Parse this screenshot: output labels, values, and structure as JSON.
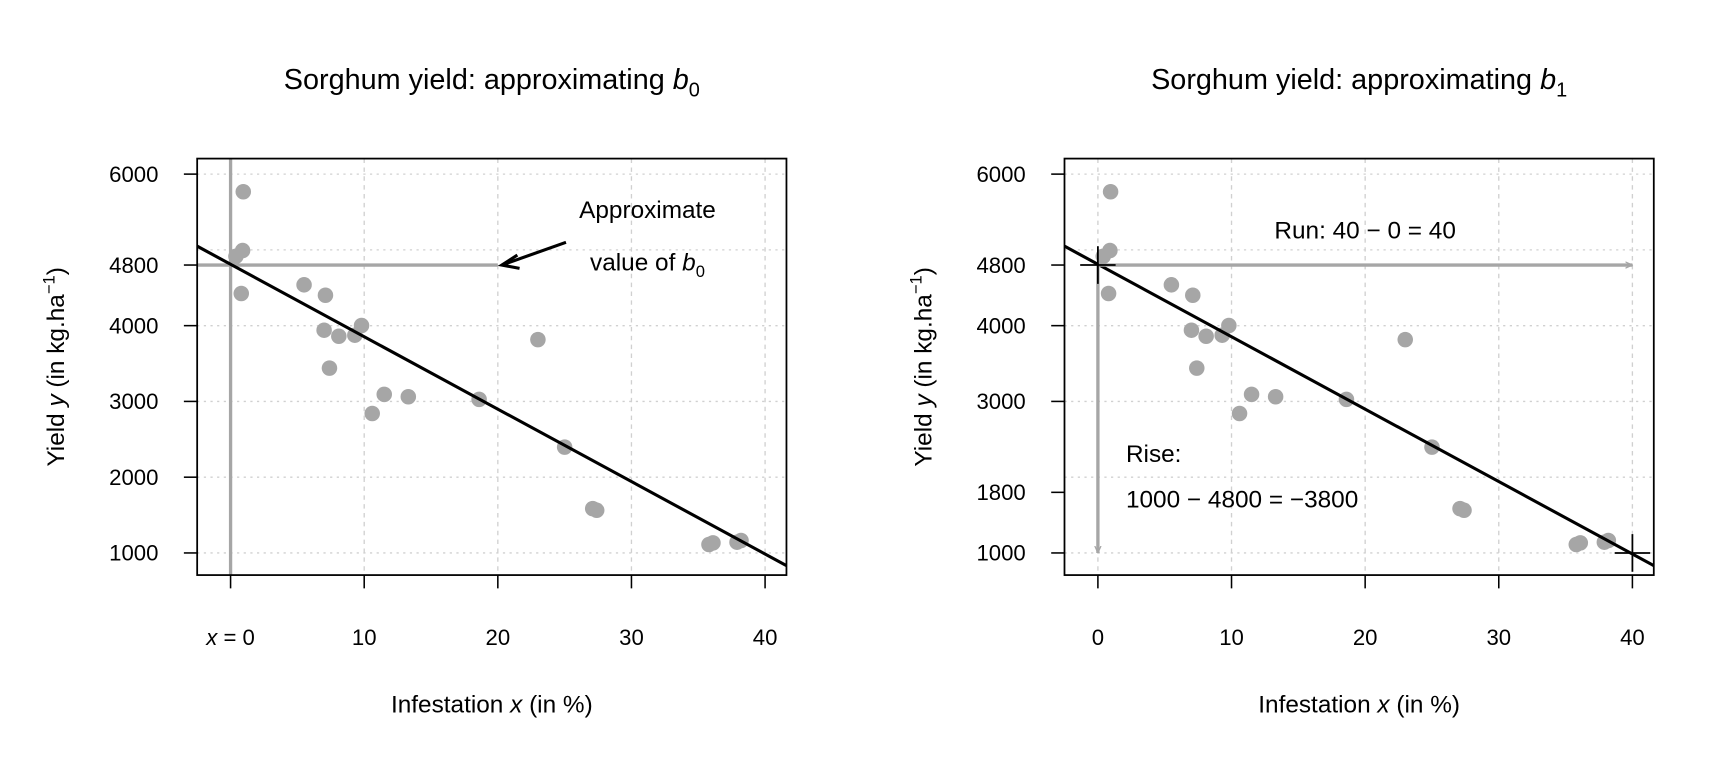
{
  "chart_data": [
    {
      "type": "scatter",
      "title": {
        "text": "Sorghum yield: approximating ",
        "var": "b",
        "sub": "0"
      },
      "xlabel": {
        "pre": "Infestation ",
        "var": "x",
        "post": " (in %)"
      },
      "ylabel": {
        "pre": "Yield ",
        "var": "y",
        "post": " (in kg.ha",
        "sup": "−1",
        "close": ")"
      },
      "xlim": [
        -2.5,
        41.6
      ],
      "ylim": [
        708,
        6205
      ],
      "grid": true,
      "x_ticks": [
        {
          "value": 0,
          "label": "x = 0"
        },
        {
          "value": 10,
          "label": "10"
        },
        {
          "value": 20,
          "label": "20"
        },
        {
          "value": 30,
          "label": "30"
        },
        {
          "value": 40,
          "label": "40"
        }
      ],
      "y_ticks": [
        {
          "value": 6000,
          "label": "6000"
        },
        {
          "value": 4800,
          "label": "4800"
        },
        {
          "value": 4000,
          "label": "4000"
        },
        {
          "value": 3000,
          "label": "3000"
        },
        {
          "value": 2000,
          "label": "2000"
        },
        {
          "value": 1000,
          "label": "1000"
        }
      ],
      "y_grid": [
        1000,
        2000,
        3000,
        4000,
        5000,
        6000
      ],
      "x_grid": [
        0,
        10,
        20,
        30,
        40
      ],
      "points": [
        [
          0.95,
          5767
        ],
        [
          0.9,
          4991
        ],
        [
          0.4,
          4916
        ],
        [
          0.8,
          4424
        ],
        [
          5.5,
          4539
        ],
        [
          7.1,
          4401
        ],
        [
          7.0,
          3940
        ],
        [
          8.1,
          3860
        ],
        [
          9.3,
          3874
        ],
        [
          9.8,
          4002
        ],
        [
          7.4,
          3439
        ],
        [
          11.5,
          3093
        ],
        [
          13.3,
          3062
        ],
        [
          10.6,
          2840
        ],
        [
          18.6,
          3027
        ],
        [
          23.0,
          3816
        ],
        [
          25.0,
          2397
        ],
        [
          27.1,
          1585
        ],
        [
          27.4,
          1563
        ],
        [
          35.8,
          1111
        ],
        [
          36.1,
          1133
        ],
        [
          37.9,
          1142
        ],
        [
          38.2,
          1164
        ]
      ],
      "regression": {
        "intercept": 4810,
        "slope": -95.6
      },
      "point_color": "#a6a6a6",
      "guide_color": "#a6a6a6",
      "annotations": {
        "label_line1": "Approximate",
        "label_line2": "value of ",
        "label_var": "b",
        "label_sub": "0",
        "guide_value_x": 0,
        "guide_value_y": 4800
      }
    },
    {
      "type": "scatter",
      "title": {
        "text": "Sorghum yield: approximating ",
        "var": "b",
        "sub": "1"
      },
      "xlabel": {
        "pre": "Infestation ",
        "var": "x",
        "post": " (in %)"
      },
      "ylabel": {
        "pre": "Yield ",
        "var": "y",
        "post": " (in kg.ha",
        "sup": "−1",
        "close": ")"
      },
      "xlim": [
        -2.5,
        41.6
      ],
      "ylim": [
        708,
        6205
      ],
      "grid": true,
      "x_ticks": [
        {
          "value": 0,
          "label": "0"
        },
        {
          "value": 10,
          "label": "10"
        },
        {
          "value": 20,
          "label": "20"
        },
        {
          "value": 30,
          "label": "30"
        },
        {
          "value": 40,
          "label": "40"
        }
      ],
      "y_ticks": [
        {
          "value": 6000,
          "label": "6000"
        },
        {
          "value": 4800,
          "label": "4800"
        },
        {
          "value": 4000,
          "label": "4000"
        },
        {
          "value": 3000,
          "label": "3000"
        },
        {
          "value": 1800,
          "label": "1800"
        },
        {
          "value": 1000,
          "label": "1000"
        }
      ],
      "y_grid": [
        1000,
        2000,
        3000,
        4000,
        5000,
        6000
      ],
      "x_grid": [
        0,
        10,
        20,
        30,
        40
      ],
      "points": [
        [
          0.95,
          5767
        ],
        [
          0.9,
          4991
        ],
        [
          0.4,
          4916
        ],
        [
          0.8,
          4424
        ],
        [
          5.5,
          4539
        ],
        [
          7.1,
          4401
        ],
        [
          7.0,
          3940
        ],
        [
          8.1,
          3860
        ],
        [
          9.3,
          3874
        ],
        [
          9.8,
          4002
        ],
        [
          7.4,
          3439
        ],
        [
          11.5,
          3093
        ],
        [
          13.3,
          3062
        ],
        [
          10.6,
          2840
        ],
        [
          18.6,
          3027
        ],
        [
          23.0,
          3816
        ],
        [
          25.0,
          2397
        ],
        [
          27.1,
          1585
        ],
        [
          27.4,
          1563
        ],
        [
          35.8,
          1111
        ],
        [
          36.1,
          1133
        ],
        [
          37.9,
          1142
        ],
        [
          38.2,
          1164
        ]
      ],
      "regression": {
        "intercept": 4810,
        "slope": -95.6
      },
      "point_color": "#a6a6a6",
      "guide_color": "#a6a6a6",
      "annotations": {
        "run_label": "Run:  40 − 0 = 40",
        "rise_label1": "Rise:",
        "rise_label2": "1000 − 4800 = −3800",
        "start_point": [
          0,
          4800
        ],
        "end_point": [
          40,
          1000
        ]
      }
    }
  ]
}
